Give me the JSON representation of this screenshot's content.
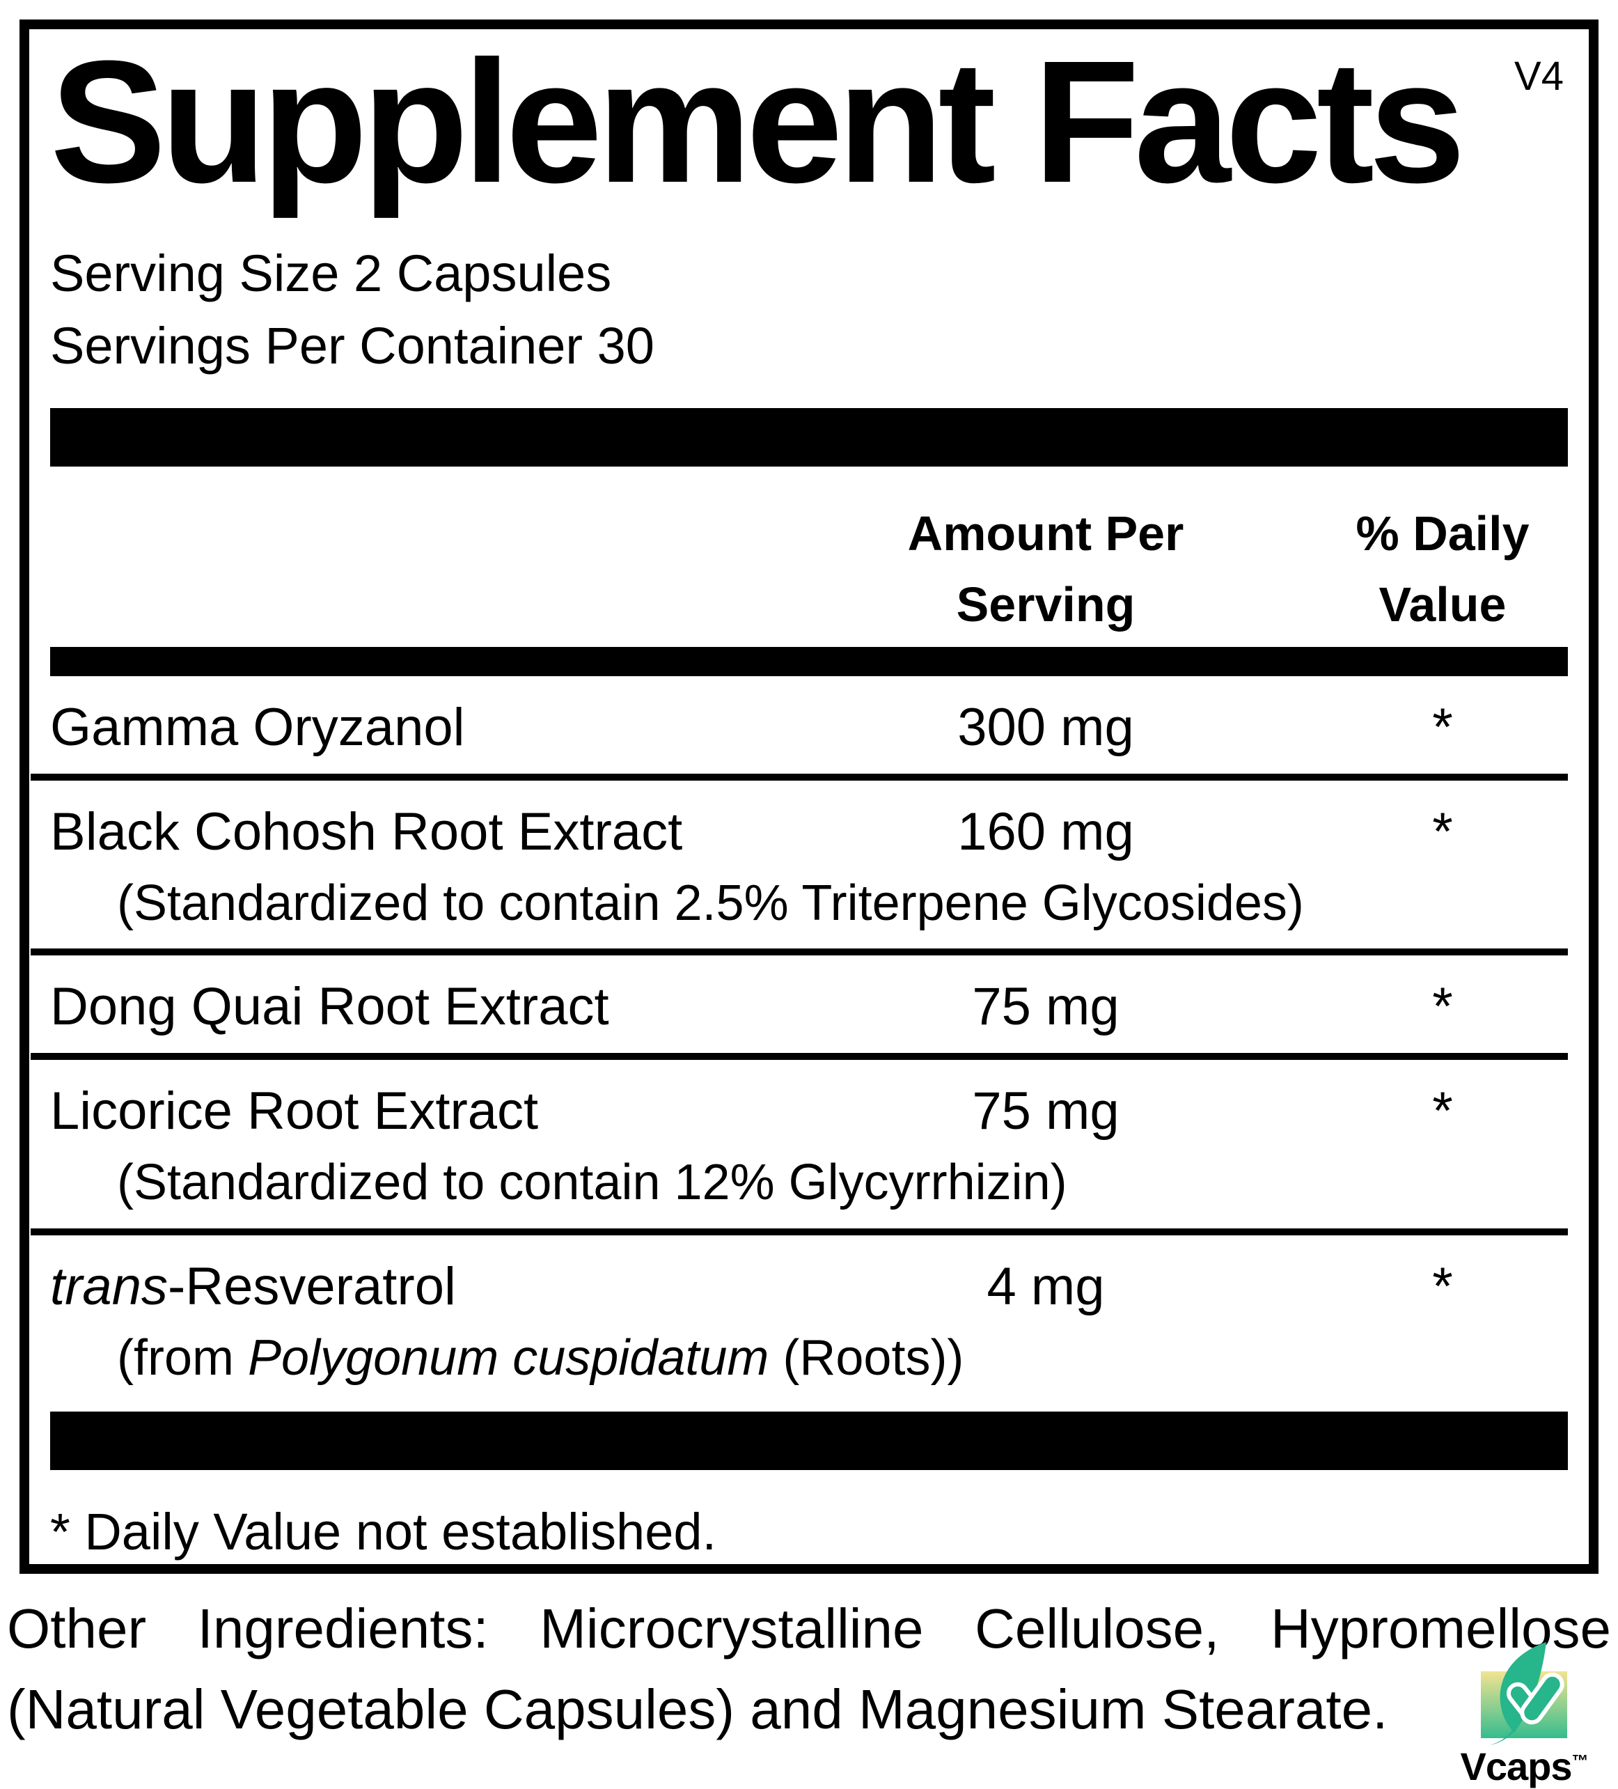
{
  "title": "Supplement Facts",
  "version": "V4",
  "serving": {
    "size_label": "Serving Size 2 Capsules",
    "per_container_label": "Servings Per Container 30"
  },
  "table_header": {
    "amount_line1": "Amount Per",
    "amount_line2": "Serving",
    "dv_line1": "% Daily",
    "dv_line2": "Value"
  },
  "rows": [
    {
      "name_segments": [
        {
          "text": "Gamma Oryzanol"
        }
      ],
      "amount": "300 mg",
      "daily_value": "*"
    },
    {
      "name_segments": [
        {
          "text": "Black Cohosh Root Extract"
        }
      ],
      "amount": "160 mg",
      "daily_value": "*",
      "note_segments": [
        {
          "text": "(Standardized to contain 2.5% Triterpene Glycosides)"
        }
      ]
    },
    {
      "name_segments": [
        {
          "text": "Dong Quai Root Extract"
        }
      ],
      "amount": "75 mg",
      "daily_value": "*"
    },
    {
      "name_segments": [
        {
          "text": "Licorice Root Extract"
        }
      ],
      "amount": "75 mg",
      "daily_value": "*",
      "note_segments": [
        {
          "text": "(Standardized to contain 12% Glycyrrhizin)"
        }
      ]
    },
    {
      "name_segments": [
        {
          "text": "trans",
          "italic": true
        },
        {
          "text": "-Resveratrol"
        }
      ],
      "amount": "4 mg",
      "daily_value": "*",
      "note_segments": [
        {
          "text": "(from "
        },
        {
          "text": "Polygonum cuspidatum",
          "italic": true
        },
        {
          "text": " (Roots))"
        }
      ]
    }
  ],
  "footnote": "* Daily Value not established.",
  "other_ingredients": {
    "line1": "Other Ingredients: Microcrystalline Cellulose, Hypromellose",
    "line2": "(Natural Vegetable Capsules) and Magnesium Stearate."
  },
  "logo": {
    "wordmark": "Vcaps",
    "trademark": "™",
    "square_top_color": "#F2E490",
    "square_bottom_color": "#35BC8E",
    "leaf_color": "#27B58B"
  }
}
